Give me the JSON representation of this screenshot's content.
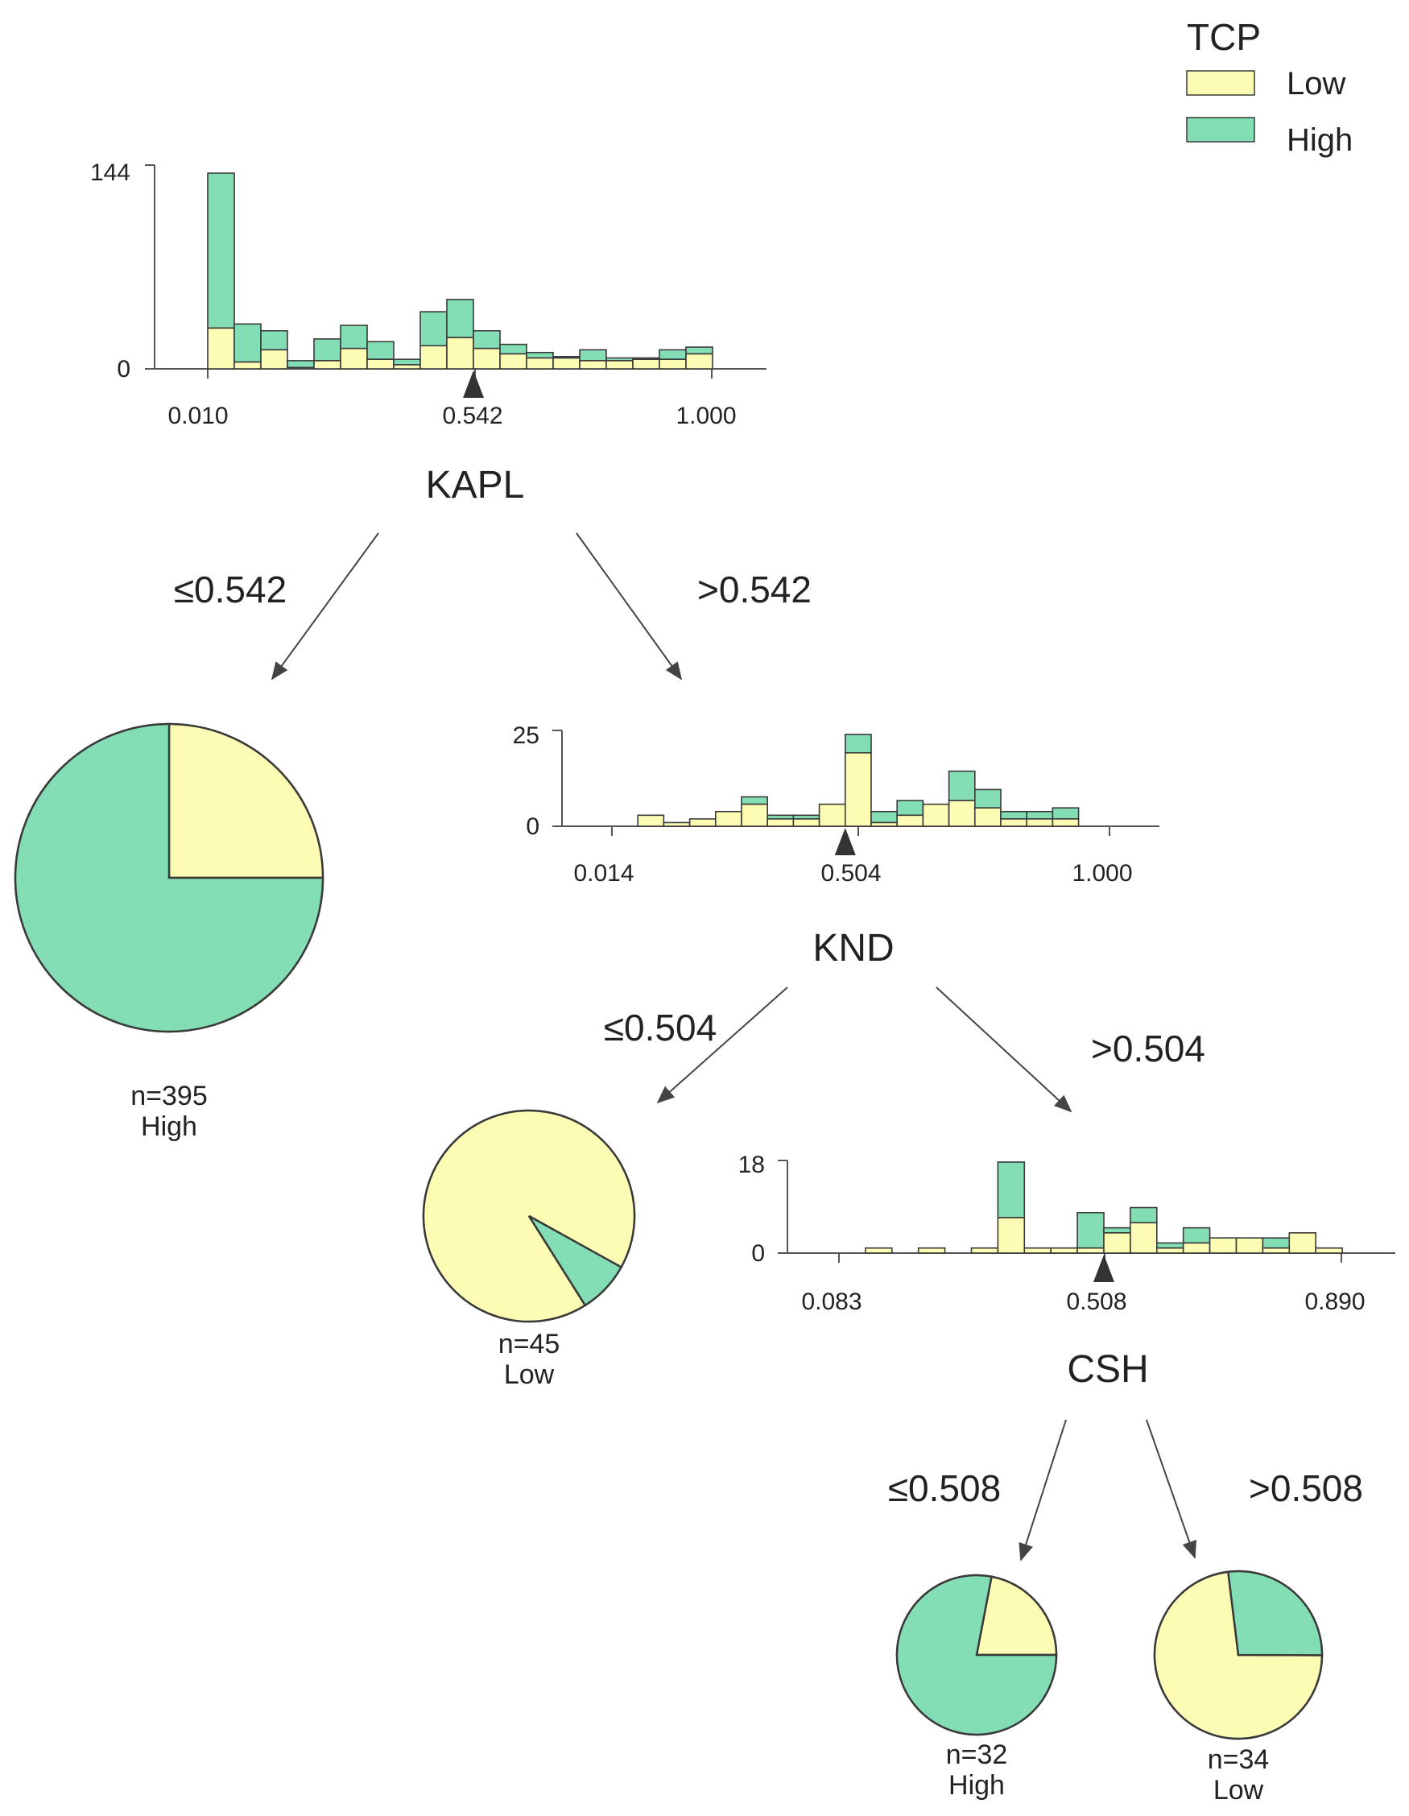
{
  "colors": {
    "low": "#fcfcb4",
    "high": "#83ddb5",
    "stroke": "#3a3a3a",
    "axis": "#555555",
    "marker": "#333333"
  },
  "legend": {
    "title": "TCP",
    "items": [
      {
        "label": "Low",
        "color": "#fcfcb4"
      },
      {
        "label": "High",
        "color": "#83ddb5"
      }
    ]
  },
  "chart_data": [
    {
      "type": "bar",
      "name": "kapl",
      "title": "KAPL",
      "stacked_series": [
        "Low",
        "High"
      ],
      "y_ticks": [
        "144",
        "0"
      ],
      "ymax": 144,
      "x_ticks": [
        "0.010",
        "0.542",
        "1.000"
      ],
      "split": "0.542",
      "split_bin": 10,
      "low": [
        30,
        5,
        14,
        1,
        6,
        15,
        7,
        3,
        17,
        23,
        15,
        11,
        8,
        8,
        6,
        6,
        7,
        7,
        11
      ],
      "total": [
        144,
        33,
        28,
        6,
        22,
        32,
        20,
        7,
        42,
        51,
        28,
        18,
        12,
        9,
        14,
        8,
        8,
        14,
        16
      ]
    },
    {
      "type": "bar",
      "name": "knd",
      "title": "KND",
      "stacked_series": [
        "Low",
        "High"
      ],
      "y_ticks": [
        "25",
        "0"
      ],
      "ymax": 25,
      "x_ticks": [
        "0.014",
        "0.504",
        "1.000"
      ],
      "split": "0.504",
      "split_bin": 9,
      "low": [
        0,
        3,
        1,
        2,
        4,
        6,
        2,
        2,
        6,
        20,
        1,
        3,
        6,
        7,
        5,
        2,
        2,
        2
      ],
      "total": [
        0,
        3,
        1,
        2,
        4,
        8,
        3,
        3,
        6,
        25,
        4,
        7,
        6,
        15,
        10,
        4,
        4,
        5
      ]
    },
    {
      "type": "bar",
      "name": "csh",
      "title": "CSH",
      "stacked_series": [
        "Low",
        "High"
      ],
      "y_ticks": [
        "18",
        "0"
      ],
      "ymax": 18,
      "x_ticks": [
        "0.083",
        "0.508",
        "0.890"
      ],
      "split": "0.508",
      "split_bin": 10,
      "low": [
        0,
        1,
        0,
        1,
        0,
        1,
        7,
        1,
        1,
        1,
        4,
        6,
        1,
        2,
        3,
        3,
        1,
        4,
        1
      ],
      "total": [
        0,
        1,
        0,
        1,
        0,
        1,
        18,
        1,
        1,
        8,
        5,
        9,
        2,
        5,
        3,
        3,
        3,
        4,
        1
      ]
    },
    {
      "type": "pie",
      "name": "leaf1",
      "n_label": "n=395",
      "class_label": "High",
      "slices": [
        {
          "label": "Low",
          "value": 0.25
        },
        {
          "label": "High",
          "value": 0.75
        }
      ],
      "start_deg": 0
    },
    {
      "type": "pie",
      "name": "leaf2",
      "n_label": "n=45",
      "class_label": "Low",
      "slices": [
        {
          "label": "Low",
          "value": 0.92
        },
        {
          "label": "High",
          "value": 0.08
        }
      ],
      "start_deg": -29
    },
    {
      "type": "pie",
      "name": "leaf3",
      "n_label": "n=32",
      "class_label": "High",
      "slices": [
        {
          "label": "Low",
          "value": 0.22
        },
        {
          "label": "High",
          "value": 0.78
        }
      ],
      "start_deg": 0
    },
    {
      "type": "pie",
      "name": "leaf4",
      "n_label": "n=34",
      "class_label": "Low",
      "slices": [
        {
          "label": "Low",
          "value": 0.73
        },
        {
          "label": "High",
          "value": 0.27
        }
      ],
      "start_deg": 97
    }
  ],
  "edges": {
    "kapl_left": "≤0.542",
    "kapl_right": ">0.542",
    "knd_left": "≤0.504",
    "knd_right": ">0.504",
    "csh_left": "≤0.508",
    "csh_right": ">0.508"
  }
}
